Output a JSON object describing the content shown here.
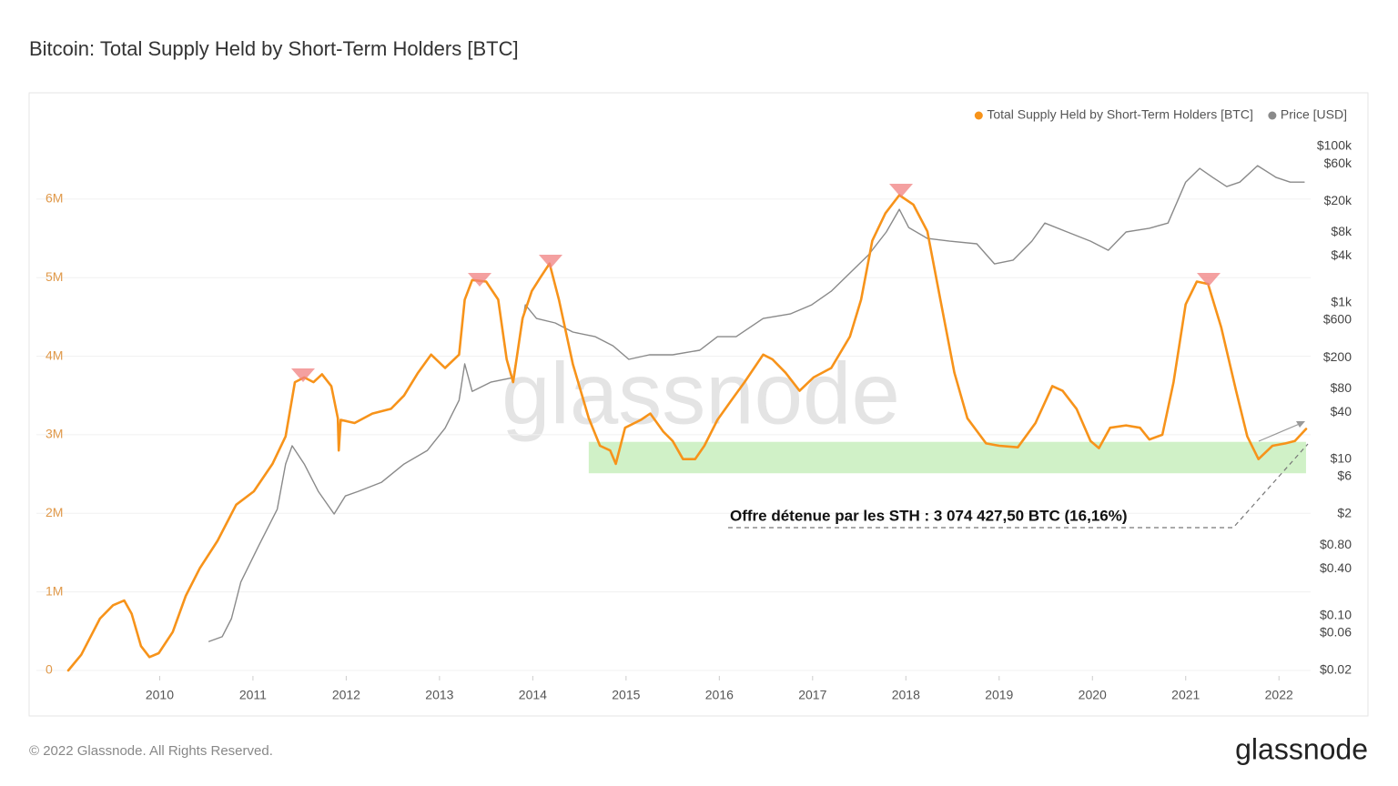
{
  "chart_data": {
    "type": "line",
    "title": "Bitcoin: Total Supply Held by Short-Term Holders [BTC]",
    "annotation": "Offre détenue par les STH : 3 074 427,50 BTC (16,16%)",
    "watermark": "glassnode",
    "footer": "© 2022 Glassnode. All Rights Reserved.",
    "logo": "glassnode",
    "legend_position": "top-right",
    "grid": true,
    "xlim": [
      2009.02,
      2022.31
    ],
    "xticks": [
      2010,
      2011,
      2012,
      2013,
      2014,
      2015,
      2016,
      2017,
      2018,
      2019,
      2020,
      2021,
      2022
    ],
    "ylim": [
      0,
      6670000
    ],
    "yticks": [
      0,
      {
        "value": 1000000,
        "label": "1M"
      },
      {
        "value": 2000000,
        "label": "2M"
      },
      {
        "value": 3000000,
        "label": "3M"
      },
      {
        "value": 4000000,
        "label": "4M"
      },
      {
        "value": 5000000,
        "label": "5M"
      },
      {
        "value": 6000000,
        "label": "6M"
      }
    ],
    "y2lim": [
      0.02,
      100000
    ],
    "y2scale": "log",
    "y2ticks": [
      {
        "value": 100000,
        "label": "$100k"
      },
      {
        "value": 60000,
        "label": "$60k"
      },
      {
        "value": 20000,
        "label": "$20k"
      },
      {
        "value": 8000,
        "label": "$8k"
      },
      {
        "value": 4000,
        "label": "$4k"
      },
      {
        "value": 1000,
        "label": "$1k"
      },
      {
        "value": 600,
        "label": "$600"
      },
      {
        "value": 200,
        "label": "$200"
      },
      {
        "value": 80,
        "label": "$80"
      },
      {
        "value": 40,
        "label": "$40"
      },
      {
        "value": 10,
        "label": "$10"
      },
      {
        "value": 6,
        "label": "$6"
      },
      {
        "value": 2,
        "label": "$2"
      },
      {
        "value": 0.8,
        "label": "$0.80"
      },
      {
        "value": 0.4,
        "label": "$0.40"
      },
      {
        "value": 0.1,
        "label": "$0.10"
      },
      {
        "value": 0.06,
        "label": "$0.06"
      },
      {
        "value": 0.02,
        "label": "$0.02"
      }
    ],
    "band": {
      "x": [
        2014.6,
        2022.29
      ],
      "y": [
        2510000,
        2910000
      ],
      "color": "#c8efbd"
    },
    "series": [
      {
        "name": "Total Supply Held by Short-Term Holders [BTC]",
        "color": "#f7931a",
        "x": [
          2009.02,
          2009.16,
          2009.36,
          2009.5,
          2009.62,
          2009.7,
          2009.8,
          2009.89,
          2009.99,
          2010.14,
          2010.28,
          2010.43,
          2010.62,
          2010.82,
          2011.01,
          2011.21,
          2011.35,
          2011.45,
          2011.55,
          2011.65,
          2011.74,
          2011.84,
          2011.91,
          2011.92,
          2011.94,
          2012.09,
          2012.28,
          2012.48,
          2012.62,
          2012.77,
          2012.91,
          2013.06,
          2013.21,
          2013.27,
          2013.35,
          2013.5,
          2013.63,
          2013.72,
          2013.79,
          2013.89,
          2013.99,
          2014.08,
          2014.18,
          2014.28,
          2014.43,
          2014.6,
          2014.72,
          2014.83,
          2014.89,
          2014.99,
          2015.16,
          2015.26,
          2015.4,
          2015.5,
          2015.61,
          2015.74,
          2015.84,
          2015.98,
          2016.13,
          2016.27,
          2016.47,
          2016.57,
          2016.71,
          2016.86,
          2017.01,
          2017.2,
          2017.4,
          2017.52,
          2017.64,
          2017.78,
          2017.93,
          2018.08,
          2018.23,
          2018.37,
          2018.52,
          2018.66,
          2018.86,
          2019.0,
          2019.2,
          2019.39,
          2019.57,
          2019.68,
          2019.83,
          2019.98,
          2020.07,
          2020.19,
          2020.36,
          2020.51,
          2020.61,
          2020.75,
          2020.87,
          2021.0,
          2021.12,
          2021.24,
          2021.38,
          2021.54,
          2021.66,
          2021.78,
          2021.93,
          2022.07,
          2022.17,
          2022.29
        ],
        "values": [
          0,
          200000,
          660000,
          830000,
          890000,
          720000,
          310000,
          170000,
          220000,
          490000,
          950000,
          1300000,
          1650000,
          2110000,
          2280000,
          2630000,
          2980000,
          3670000,
          3730000,
          3670000,
          3770000,
          3620000,
          3210000,
          2800000,
          3190000,
          3150000,
          3270000,
          3330000,
          3500000,
          3790000,
          4020000,
          3850000,
          4020000,
          4720000,
          4970000,
          4950000,
          4720000,
          3960000,
          3670000,
          4480000,
          4830000,
          5000000,
          5180000,
          4720000,
          3900000,
          3210000,
          2860000,
          2800000,
          2630000,
          3090000,
          3190000,
          3270000,
          3040000,
          2920000,
          2690000,
          2690000,
          2860000,
          3190000,
          3440000,
          3670000,
          4020000,
          3960000,
          3790000,
          3560000,
          3730000,
          3850000,
          4250000,
          4720000,
          5470000,
          5820000,
          6050000,
          5930000,
          5590000,
          4720000,
          3790000,
          3210000,
          2890000,
          2860000,
          2840000,
          3150000,
          3620000,
          3560000,
          3330000,
          2920000,
          2830000,
          3090000,
          3120000,
          3090000,
          2940000,
          3000000,
          3670000,
          4660000,
          4950000,
          4920000,
          4370000,
          3560000,
          2980000,
          2690000,
          2860000,
          2890000,
          2920000,
          3074427.5
        ]
      },
      {
        "name": "Price [USD]",
        "color": "#8a8a8a",
        "axis": "y2",
        "x": [
          2010.53,
          2010.67,
          2010.77,
          2010.87,
          2011.06,
          2011.26,
          2011.35,
          2011.42,
          2011.55,
          2011.7,
          2011.87,
          2011.99,
          2012.13,
          2012.38,
          2012.62,
          2012.87,
          2013.06,
          2013.21,
          2013.27,
          2013.35,
          2013.55,
          2013.79,
          2013.92,
          2014.04,
          2014.24,
          2014.43,
          2014.67,
          2014.86,
          2015.03,
          2015.25,
          2015.5,
          2015.79,
          2015.98,
          2016.18,
          2016.47,
          2016.76,
          2016.99,
          2017.2,
          2017.4,
          2017.6,
          2017.79,
          2017.93,
          2018.03,
          2018.23,
          2018.47,
          2018.76,
          2018.95,
          2019.15,
          2019.35,
          2019.49,
          2019.73,
          2019.98,
          2020.17,
          2020.36,
          2020.61,
          2020.81,
          2021.0,
          2021.15,
          2021.29,
          2021.44,
          2021.58,
          2021.77,
          2021.97,
          2022.12,
          2022.27
        ],
        "values": [
          0.047,
          0.054,
          0.092,
          0.27,
          0.78,
          2.3,
          8.7,
          14.9,
          8.7,
          3.9,
          2.0,
          3.4,
          3.9,
          5.1,
          8.7,
          13,
          25,
          57,
          166,
          74,
          97,
          111,
          945,
          632,
          554,
          424,
          370,
          283,
          190,
          217,
          217,
          248,
          370,
          370,
          632,
          723,
          945,
          1412,
          2412,
          4120,
          8060,
          15700,
          9200,
          6670,
          6150,
          5700,
          3150,
          3530,
          6150,
          10500,
          8060,
          6150,
          4710,
          8060,
          9000,
          10500,
          35000,
          52500,
          40100,
          30700,
          35000,
          56800,
          40100,
          35000,
          35000
        ]
      }
    ]
  }
}
